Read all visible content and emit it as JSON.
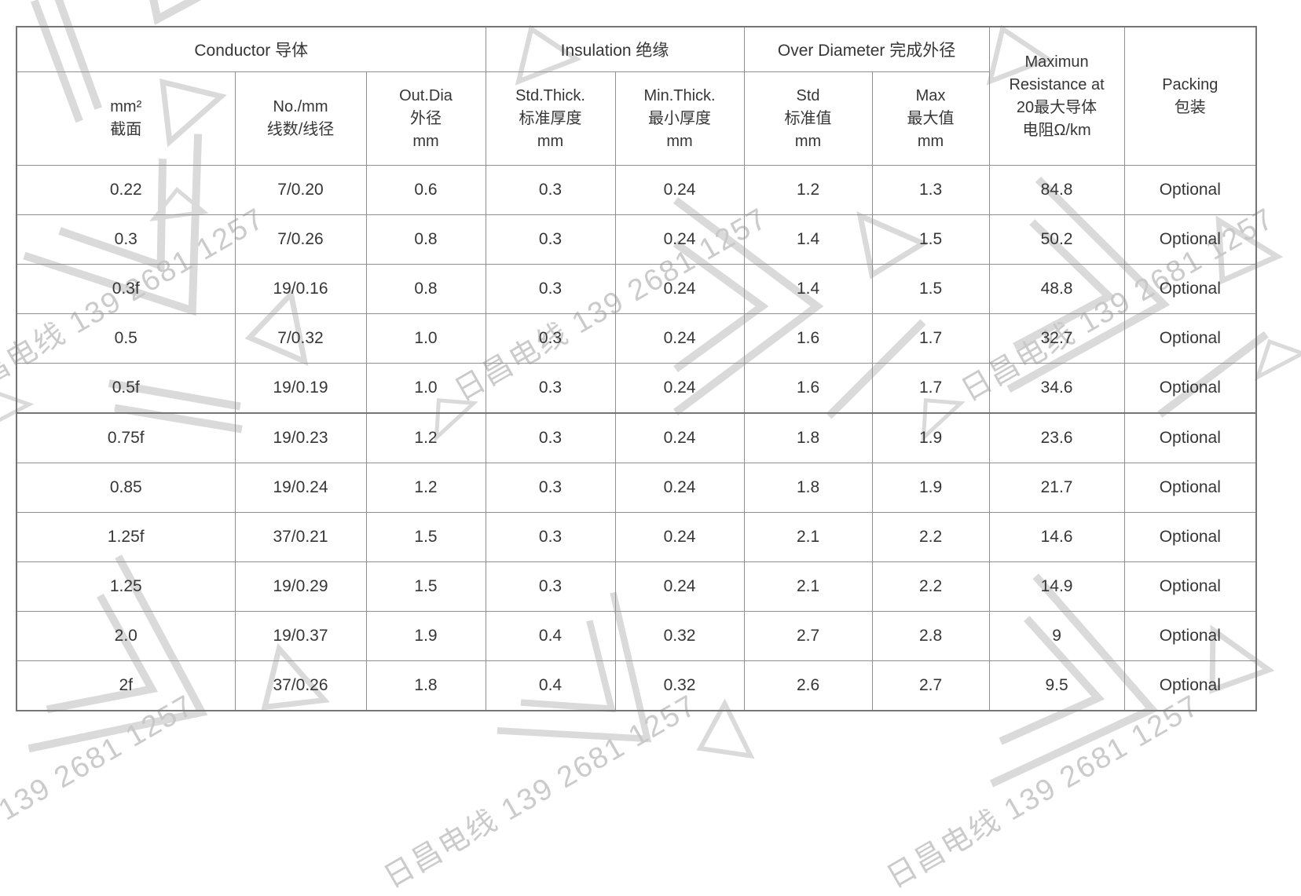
{
  "watermark": {
    "text": "日昌电线 139 2681 1257",
    "text_color": "#c7c7c7",
    "shape_color": "#dadada"
  },
  "table": {
    "column_groups": [
      {
        "label": "Conductor 导体",
        "span": 3
      },
      {
        "label": "Insulation 绝缘",
        "span": 2
      },
      {
        "label": "Over Diameter 完成外径",
        "span": 2
      }
    ],
    "rowspan_headers": [
      {
        "label": "Maximun\nResistance at\n20最大导体\n电阻Ω/km"
      },
      {
        "label": "Packing\n包装"
      }
    ],
    "sub_headers": [
      "mm²\n截面",
      "No./mm\n线数/线径",
      "Out.Dia\n外径\nmm",
      "Std.Thick.\n标准厚度\nmm",
      "Min.Thick.\n最小厚度\nmm",
      "Std\n标准值\nmm",
      "Max\n最大值\nmm"
    ],
    "rows": [
      [
        "0.22",
        "7/0.20",
        "0.6",
        "0.3",
        "0.24",
        "1.2",
        "1.3",
        "84.8",
        "Optional"
      ],
      [
        "0.3",
        "7/0.26",
        "0.8",
        "0.3",
        "0.24",
        "1.4",
        "1.5",
        "50.2",
        "Optional"
      ],
      [
        "0.3f",
        "19/0.16",
        "0.8",
        "0.3",
        "0.24",
        "1.4",
        "1.5",
        "48.8",
        "Optional"
      ],
      [
        "0.5",
        "7/0.32",
        "1.0",
        "0.3",
        "0.24",
        "1.6",
        "1.7",
        "32.7",
        "Optional"
      ],
      [
        "0.5f",
        "19/0.19",
        "1.0",
        "0.3",
        "0.24",
        "1.6",
        "1.7",
        "34.6",
        "Optional"
      ],
      [
        "0.75f",
        "19/0.23",
        "1.2",
        "0.3",
        "0.24",
        "1.8",
        "1.9",
        "23.6",
        "Optional"
      ],
      [
        "0.85",
        "19/0.24",
        "1.2",
        "0.3",
        "0.24",
        "1.8",
        "1.9",
        "21.7",
        "Optional"
      ],
      [
        "1.25f",
        "37/0.21",
        "1.5",
        "0.3",
        "0.24",
        "2.1",
        "2.2",
        "14.6",
        "Optional"
      ],
      [
        "1.25",
        "19/0.29",
        "1.5",
        "0.3",
        "0.24",
        "2.1",
        "2.2",
        "14.9",
        "Optional"
      ],
      [
        "2.0",
        "19/0.37",
        "1.9",
        "0.4",
        "0.32",
        "2.7",
        "2.8",
        "9",
        "Optional"
      ],
      [
        "2f",
        "37/0.26",
        "1.8",
        "0.4",
        "0.32",
        "2.6",
        "2.7",
        "9.5",
        "Optional"
      ]
    ],
    "thick_divider_after_row": 5
  }
}
